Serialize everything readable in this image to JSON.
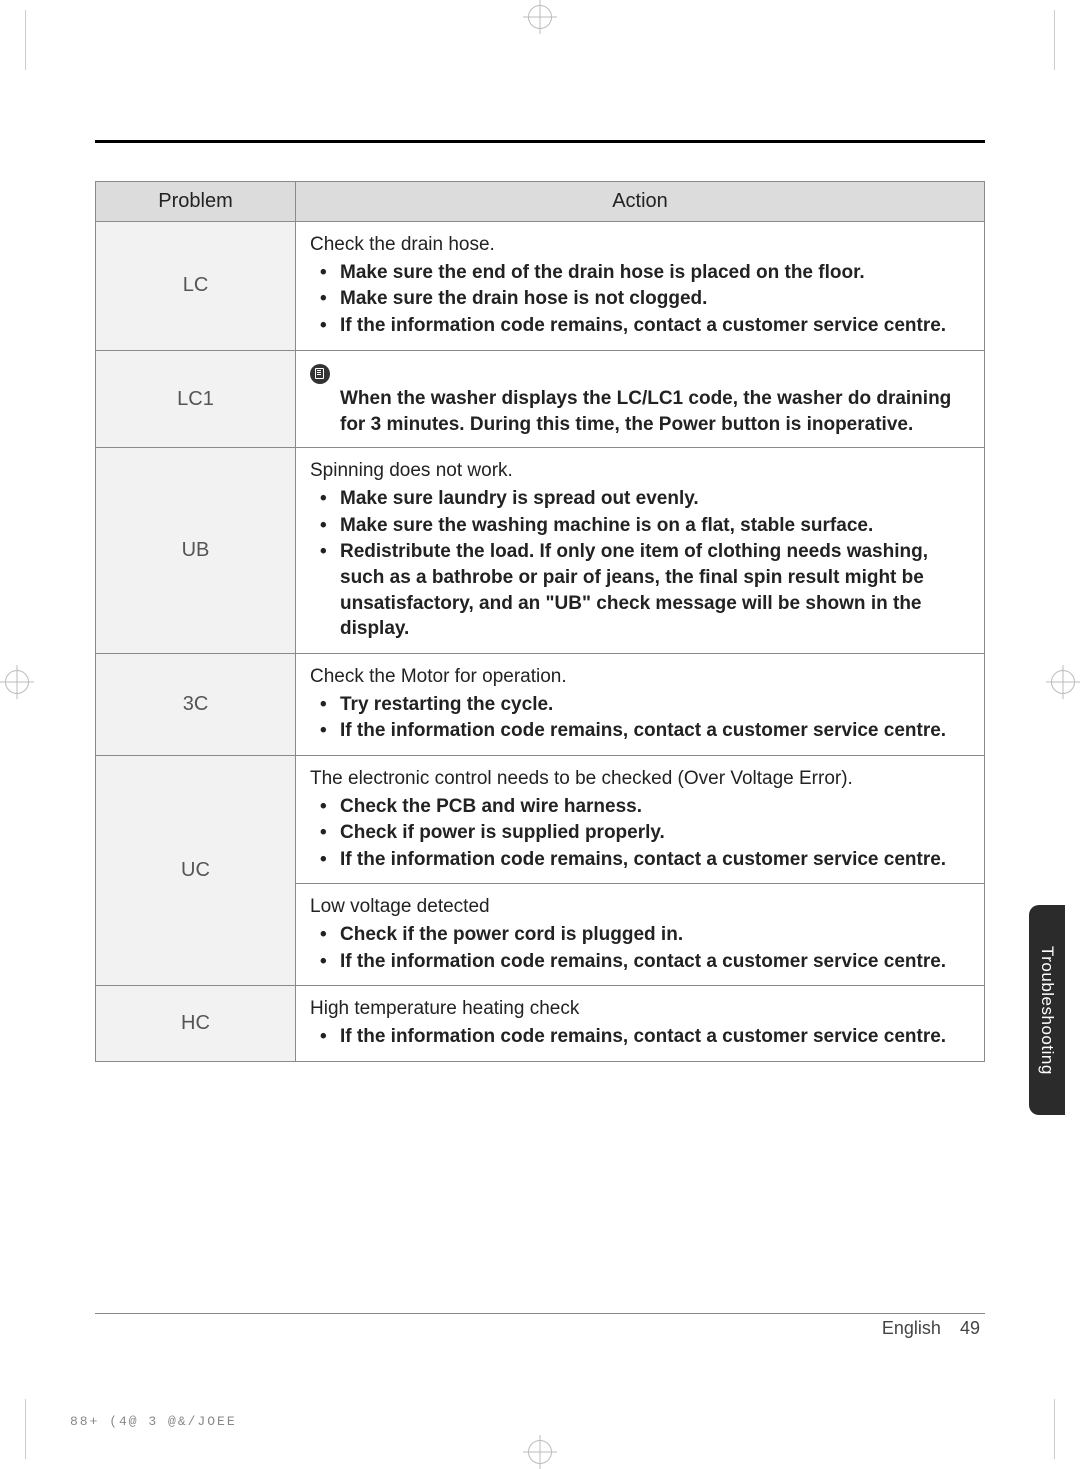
{
  "table": {
    "headers": {
      "problem": "Problem",
      "action": "Action"
    },
    "rows": {
      "lc": {
        "code": "LC",
        "lead": "Check the drain hose.",
        "items": [
          "Make sure the end of the drain hose is placed on the floor.",
          "Make sure the drain hose is not clogged.",
          "If the information code remains, contact a customer service centre."
        ]
      },
      "lc1": {
        "code": "LC1",
        "note": "When the washer displays the LC/LC1 code, the washer do draining for 3 minutes. During this time, the Power button is inoperative."
      },
      "ub": {
        "code": "UB",
        "lead": "Spinning does not work.",
        "items": [
          "Make sure laundry is spread out evenly.",
          "Make sure the washing machine is on a flat, stable surface.",
          "Redistribute the load. If only one item of clothing needs washing, such as a bathrobe or pair of jeans, the final spin result  might be unsatisfactory, and an \"UB\" check message will be shown in the display."
        ]
      },
      "c3": {
        "code": "3C",
        "lead": "Check the Motor for operation.",
        "items": [
          "Try restarting the cycle.",
          "If  the information code remains, contact a customer service centre."
        ]
      },
      "uc1": {
        "lead": "The electronic control needs to be checked (Over Voltage Error).",
        "items": [
          "Check the PCB and wire harness.",
          "Check if power is supplied properly.",
          "If the information code remains, contact a customer service centre."
        ]
      },
      "uc2": {
        "lead": "Low voltage detected",
        "items": [
          "Check if the power cord is plugged in.",
          "If the information code remains, contact a customer service centre."
        ]
      },
      "uc": {
        "code": "UC"
      },
      "hc": {
        "code": "HC",
        "lead": "High temperature heating check",
        "items": [
          "If the information code remains, contact a customer service centre."
        ]
      }
    }
  },
  "sideTab": "Troubleshooting",
  "footer": {
    "lang": "English",
    "page": "49"
  },
  "printCode": "88+ (4@  3 @&/JOEE"
}
